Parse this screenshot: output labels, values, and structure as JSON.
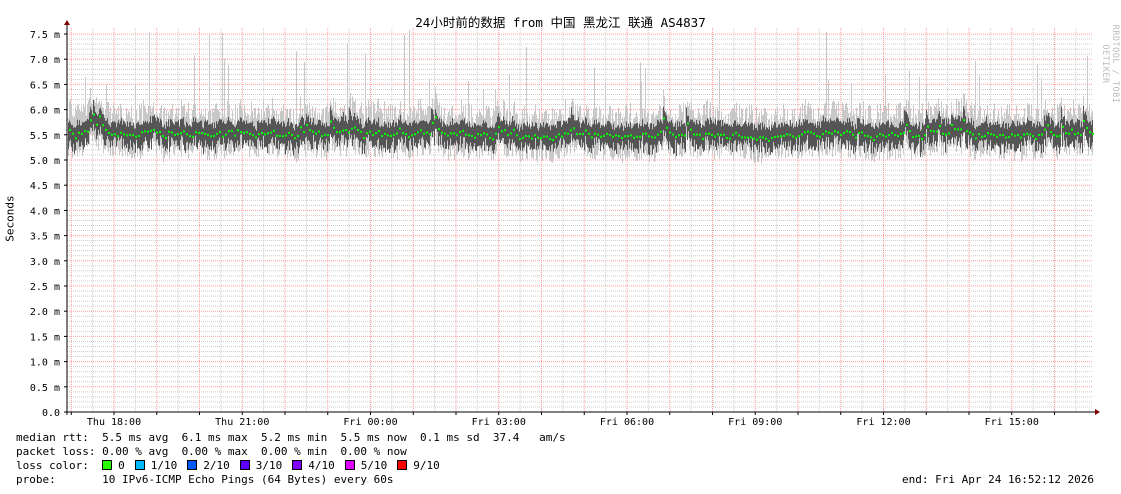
{
  "chart_data": {
    "type": "area",
    "title": "24小时前的数据 from  中国 黑龙江 联通 AS4837",
    "ylabel": "Seconds",
    "ylim": [
      0,
      7.5
    ],
    "y_unit_suffix": "m",
    "yticks": [
      "0.0",
      "0.5 m",
      "1.0 m",
      "1.5 m",
      "2.0 m",
      "2.5 m",
      "3.0 m",
      "3.5 m",
      "4.0 m",
      "4.5 m",
      "5.0 m",
      "5.5 m",
      "6.0 m",
      "6.5 m",
      "7.0 m",
      "7.5 m"
    ],
    "xticks": [
      "Thu 18:00",
      "Thu 21:00",
      "Fri 00:00",
      "Fri 03:00",
      "Fri 06:00",
      "Fri 09:00",
      "Fri 12:00",
      "Fri 15:00"
    ],
    "grid": true,
    "series": [
      {
        "kind": "median",
        "color": "#00ff00",
        "typical_ms": 5.5,
        "range_ms": [
          5.2,
          6.1
        ]
      },
      {
        "kind": "smoke",
        "color": "#888888",
        "typical_range_ms": [
          5.0,
          6.0
        ],
        "spike_max_ms": 7.6
      }
    ],
    "colors": {
      "major_grid": "#ff9999",
      "minor_grid": "#cccccc",
      "axis": "#000000",
      "arrow": "#800000"
    }
  },
  "title": "24小时前的数据 from  中国 黑龙江 联通 AS4837",
  "ylabel": "Seconds",
  "watermark": "RRDTOOL / TOBI OETIKER",
  "legend": {
    "median_rtt": "median rtt:  5.5 ms avg  6.1 ms max  5.2 ms min  5.5 ms now  0.1 ms sd  37.4   am/s",
    "packet_loss": "packet loss: 0.00 % avg  0.00 % max  0.00 % min  0.00 % now",
    "loss_color_label": "loss color:  ",
    "loss_colors": [
      {
        "label": "0",
        "color": "#26ff00"
      },
      {
        "label": "1/10",
        "color": "#00b8ff"
      },
      {
        "label": "2/10",
        "color": "#0059ff"
      },
      {
        "label": "3/10",
        "color": "#5e00ff"
      },
      {
        "label": "4/10",
        "color": "#7e00ff"
      },
      {
        "label": "5/10",
        "color": "#dd00ff"
      },
      {
        "label": "9/10",
        "color": "#ff0000"
      }
    ],
    "probe": "probe:       10 IPv6-ICMP Echo Pings (64 Bytes) every 60s",
    "end": "end: Fri Apr 24 16:52:12 2026"
  }
}
